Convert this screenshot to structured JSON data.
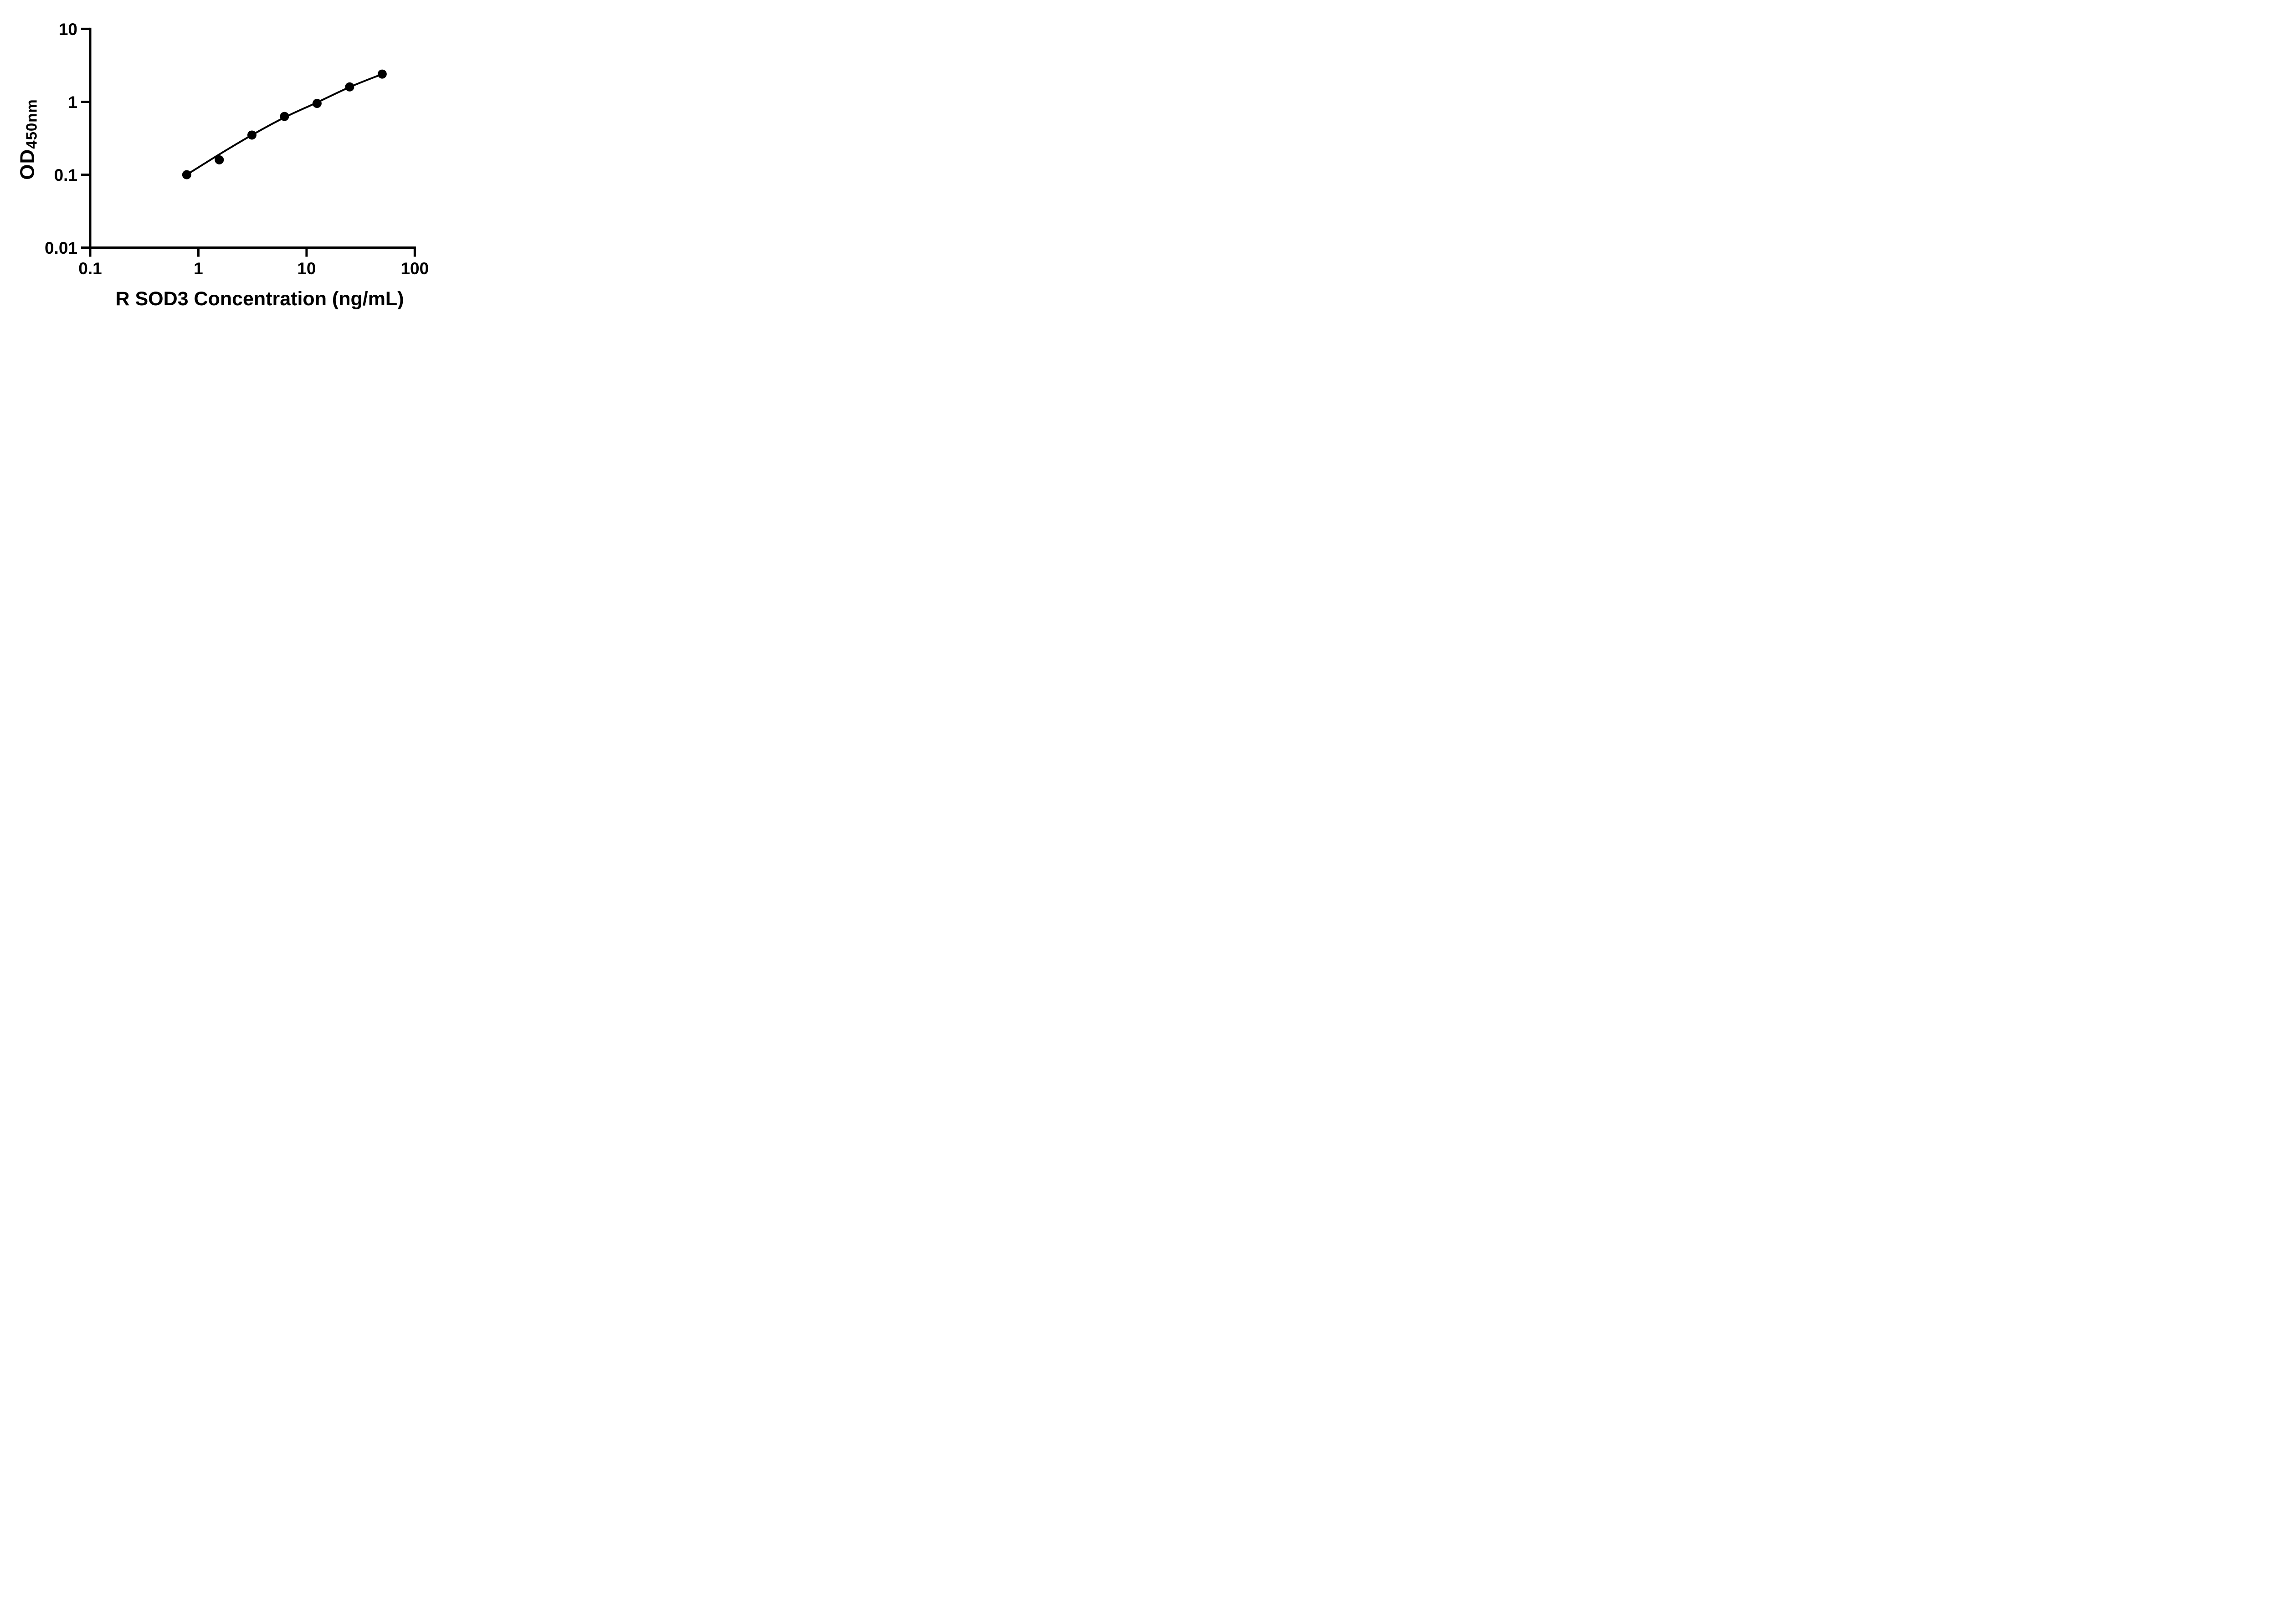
{
  "figure": {
    "background": "#ffffff",
    "ink_color": "#000000"
  },
  "chart_data": {
    "type": "scatter",
    "x_scale": "log",
    "y_scale": "log",
    "title": "",
    "xlabel": "R SOD3 Concentration (ng/mL)",
    "ylabel_main": "OD",
    "ylabel_sub": "450nm",
    "xlim": [
      0.1,
      100
    ],
    "ylim": [
      0.01,
      10
    ],
    "x_ticks": [
      "0.1",
      "1",
      "10",
      "100"
    ],
    "y_ticks": [
      "10",
      "1",
      "0.1",
      "0.01"
    ],
    "grid": false,
    "legend_position": "none",
    "marker": "filled-circle",
    "points": [
      {
        "x": 0.78,
        "y": 0.1
      },
      {
        "x": 1.56,
        "y": 0.16
      },
      {
        "x": 3.125,
        "y": 0.35
      },
      {
        "x": 6.25,
        "y": 0.63
      },
      {
        "x": 12.5,
        "y": 0.95
      },
      {
        "x": 25,
        "y": 1.6
      },
      {
        "x": 50,
        "y": 2.4
      }
    ],
    "fit_curve": [
      {
        "x": 0.78,
        "y": 0.1
      },
      {
        "x": 1.56,
        "y": 0.19
      },
      {
        "x": 3.125,
        "y": 0.35
      },
      {
        "x": 6.25,
        "y": 0.61
      },
      {
        "x": 12.5,
        "y": 0.98
      },
      {
        "x": 25,
        "y": 1.59
      },
      {
        "x": 50,
        "y": 2.4
      }
    ]
  }
}
